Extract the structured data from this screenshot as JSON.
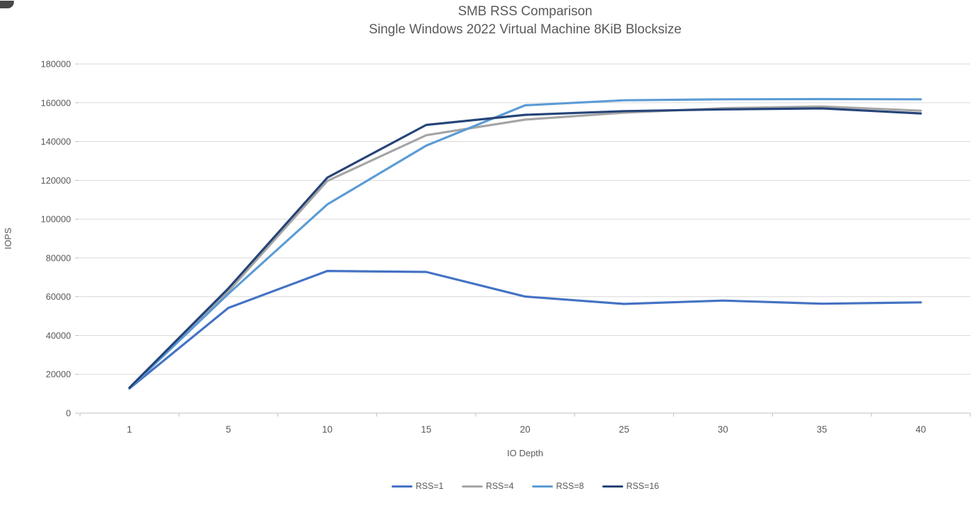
{
  "page": {
    "background": "#ffffff"
  },
  "chart_data": {
    "type": "line",
    "title": "SMB RSS Comparison",
    "subtitle": "Single Windows 2022 Virtual Machine 8KiB Blocksize",
    "xlabel": "IO Depth",
    "ylabel": "IOPS",
    "categories": [
      "1",
      "5",
      "10",
      "15",
      "20",
      "25",
      "30",
      "35",
      "40"
    ],
    "y_ticks": [
      0,
      20000,
      40000,
      60000,
      80000,
      100000,
      120000,
      140000,
      160000,
      180000
    ],
    "ylim": [
      0,
      180000
    ],
    "grid": "horizontal-on",
    "legend_position": "bottom-center",
    "series": [
      {
        "name": "RSS=1",
        "color": "#4472C4",
        "values": [
          12700,
          54200,
          73300,
          72800,
          60100,
          56300,
          58000,
          56400,
          57100
        ]
      },
      {
        "name": "RSS=4",
        "color": "#A5A5A5",
        "values": [
          12900,
          62800,
          119700,
          143300,
          151300,
          154900,
          157200,
          158100,
          155900
        ]
      },
      {
        "name": "RSS=8",
        "color": "#5B9BD5",
        "values": [
          12800,
          61500,
          107600,
          137900,
          158700,
          161300,
          161800,
          161900,
          161800
        ]
      },
      {
        "name": "RSS=16",
        "color": "#264478",
        "values": [
          13100,
          64300,
          121400,
          148600,
          153800,
          155700,
          156600,
          157100,
          154500
        ]
      }
    ]
  },
  "style": {
    "grid_color": "#D9D9D9",
    "axis_color": "#BFBFBF",
    "text_color": "#595959",
    "title_color": "#595959"
  }
}
